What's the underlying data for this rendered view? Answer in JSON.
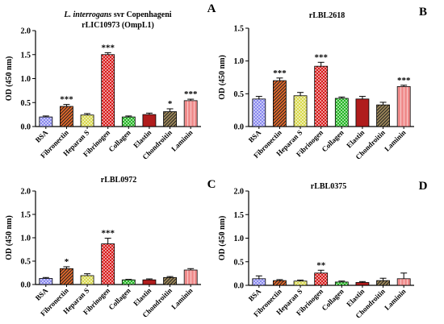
{
  "figure": {
    "colors": {
      "BSA": "#8888ee",
      "Fibronectin": "#e86a2a",
      "Heparan S": "#d8d84a",
      "Fibrinogen": "#d81a1a",
      "Collagen": "#22b522",
      "Elastin": "#b01c1c",
      "Chondroitin": "#a08a5a",
      "Laminin": "#f08c8c",
      "axis": "#000000"
    },
    "patterns": {
      "BSA": "check",
      "Fibronectin": "diag",
      "Heparan S": "check",
      "Fibrinogen": "check",
      "Collagen": "check",
      "Elastin": "solid",
      "Chondroitin": "diag",
      "Laminin": "vert"
    }
  },
  "chart_data": [
    {
      "panel": "A",
      "type": "bar",
      "title_italic": "L. interrogans",
      "title_rest": " svr Copenhageni",
      "title_line2": "rLIC10973 (OmpL1)",
      "ylabel": "OD (450 nm)",
      "ylim": [
        0,
        2.0
      ],
      "yticks": [
        "0.0",
        "0.5",
        "1.0",
        "1.5",
        "2.0"
      ],
      "categories": [
        "BSA",
        "Fibronectin",
        "Heparan S",
        "Fibrinogen",
        "Collagen",
        "Elastin",
        "Chondroitin",
        "Laminin"
      ],
      "values": [
        0.2,
        0.42,
        0.24,
        1.5,
        0.2,
        0.25,
        0.31,
        0.54
      ],
      "errors": [
        0.02,
        0.04,
        0.03,
        0.04,
        0.02,
        0.03,
        0.06,
        0.03
      ],
      "significance": [
        "",
        "***",
        "",
        "***",
        "",
        "",
        "*",
        "***"
      ]
    },
    {
      "panel": "B",
      "type": "bar",
      "title_line2": "rLBL2618",
      "ylabel": "OD (450 nm)",
      "ylim": [
        0,
        1.5
      ],
      "yticks": [
        "0.0",
        "0.5",
        "1.0",
        "1.5"
      ],
      "categories": [
        "BSA",
        "Fibronectin",
        "Heparan S",
        "Fibrinogen",
        "Collagen",
        "Elastin",
        "Chondroitin",
        "Laminin"
      ],
      "values": [
        0.42,
        0.7,
        0.47,
        0.92,
        0.43,
        0.42,
        0.33,
        0.61
      ],
      "errors": [
        0.04,
        0.04,
        0.05,
        0.06,
        0.02,
        0.04,
        0.04,
        0.02
      ],
      "significance": [
        "",
        "***",
        "",
        "***",
        "",
        "",
        "",
        "***"
      ]
    },
    {
      "panel": "C",
      "type": "bar",
      "title_line2": "rLBL0972",
      "ylabel": "OD (450 nm)",
      "ylim": [
        0,
        2.0
      ],
      "yticks": [
        "0.0",
        "0.5",
        "1.0",
        "1.5",
        "2.0"
      ],
      "categories": [
        "BSA",
        "Fibronectin",
        "Heparan S",
        "Fibrinogen",
        "Collagen",
        "Elastin",
        "Chondroitin",
        "Laminin"
      ],
      "values": [
        0.13,
        0.34,
        0.19,
        0.87,
        0.1,
        0.1,
        0.15,
        0.31
      ],
      "errors": [
        0.02,
        0.04,
        0.04,
        0.12,
        0.01,
        0.02,
        0.02,
        0.03
      ],
      "significance": [
        "",
        "*",
        "",
        "***",
        "",
        "",
        "",
        ""
      ]
    },
    {
      "panel": "D",
      "type": "bar",
      "title_line2": "rLBL0375",
      "ylabel": "OD (450 nm)",
      "ylim": [
        0,
        2.0
      ],
      "yticks": [
        "0.0",
        "0.5",
        "1.0",
        "1.5",
        "2.0"
      ],
      "categories": [
        "BSA",
        "Fibronectin",
        "Heparan S",
        "Fibrinogen",
        "Collagen",
        "Elastin",
        "Chondroitin",
        "Laminin"
      ],
      "values": [
        0.14,
        0.1,
        0.09,
        0.26,
        0.07,
        0.06,
        0.1,
        0.14
      ],
      "errors": [
        0.06,
        0.02,
        0.02,
        0.06,
        0.02,
        0.02,
        0.05,
        0.12
      ],
      "significance": [
        "",
        "",
        "",
        "**",
        "",
        "",
        "",
        ""
      ]
    }
  ]
}
